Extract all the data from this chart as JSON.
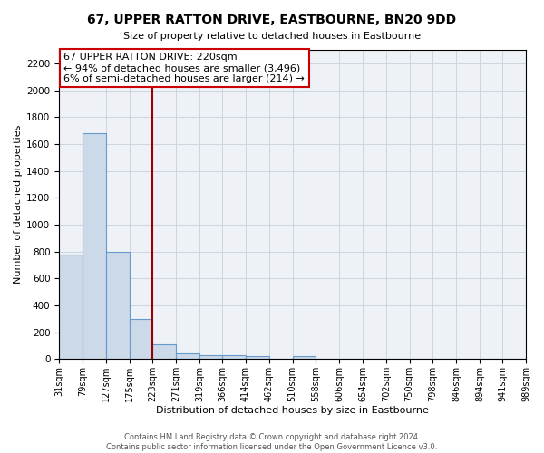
{
  "title": "67, UPPER RATTON DRIVE, EASTBOURNE, BN20 9DD",
  "subtitle": "Size of property relative to detached houses in Eastbourne",
  "xlabel": "Distribution of detached houses by size in Eastbourne",
  "ylabel": "Number of detached properties",
  "footer_line1": "Contains HM Land Registry data © Crown copyright and database right 2024.",
  "footer_line2": "Contains public sector information licensed under the Open Government Licence v3.0.",
  "bin_edges": [
    31,
    79,
    127,
    175,
    223,
    271,
    319,
    366,
    414,
    462,
    510,
    558,
    606,
    654,
    702,
    750,
    798,
    846,
    894,
    941,
    989
  ],
  "bar_heights": [
    775,
    1680,
    795,
    300,
    110,
    40,
    30,
    30,
    20,
    0,
    20,
    0,
    0,
    0,
    0,
    0,
    0,
    0,
    0,
    0
  ],
  "bar_color": "#ccd9e8",
  "bar_edge_color": "#6699cc",
  "vline_x": 223,
  "vline_color": "#990000",
  "ylim": [
    0,
    2300
  ],
  "yticks": [
    0,
    200,
    400,
    600,
    800,
    1000,
    1200,
    1400,
    1600,
    1800,
    2000,
    2200
  ],
  "annotation_text_line1": "67 UPPER RATTON DRIVE: 220sqm",
  "annotation_text_line2": "← 94% of detached houses are smaller (3,496)",
  "annotation_text_line3": "6% of semi-detached houses are larger (214) →",
  "ann_box_edge_color": "#cc0000",
  "grid_color": "#ccd6e0",
  "background_color": "#eef2f7",
  "tick_labels": [
    "31sqm",
    "79sqm",
    "127sqm",
    "175sqm",
    "223sqm",
    "271sqm",
    "319sqm",
    "366sqm",
    "414sqm",
    "462sqm",
    "510sqm",
    "558sqm",
    "606sqm",
    "654sqm",
    "702sqm",
    "750sqm",
    "798sqm",
    "846sqm",
    "894sqm",
    "941sqm",
    "989sqm"
  ],
  "title_fontsize": 10,
  "subtitle_fontsize": 8,
  "xlabel_fontsize": 8,
  "ylabel_fontsize": 8,
  "annotation_fontsize": 8,
  "footer_fontsize": 6
}
